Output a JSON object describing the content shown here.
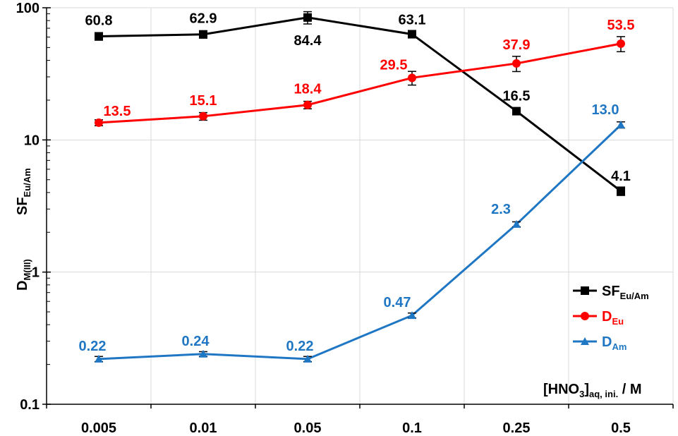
{
  "chart_data": {
    "type": "line",
    "y_scale": "log",
    "ylim": [
      0.1,
      100
    ],
    "grid": true,
    "legend_position": "right",
    "categories": [
      "0.005",
      "0.01",
      "0.05",
      "0.1",
      "0.25",
      "0.5"
    ],
    "y_tick_labels": [
      "100",
      "10",
      "1",
      "0.1"
    ],
    "y_ticks": [
      100,
      10,
      1,
      0.1
    ],
    "xlabel": {
      "main": "[HNO",
      "sub1": "3",
      "mid": "]",
      "sub2": "aq, ini.",
      "tail": " / M"
    },
    "ylabel_top": {
      "main": "SF",
      "sub": "Eu/Am"
    },
    "ylabel_bottom": {
      "main": "D",
      "sub": "M(III)"
    },
    "series": [
      {
        "key": "sf",
        "legend_main": "SF",
        "legend_sub": "Eu/Am",
        "color": "#000000",
        "marker": "square",
        "values": [
          60.8,
          62.9,
          84.4,
          63.1,
          16.5,
          4.1
        ],
        "errors": [
          4,
          4,
          9,
          4,
          1,
          0.3
        ],
        "labels": [
          "60.8",
          "62.9",
          "84.4",
          "63.1",
          "16.5",
          "4.1"
        ]
      },
      {
        "key": "deu",
        "legend_main": "D",
        "legend_sub": "Eu",
        "color": "#ff0000",
        "marker": "circle",
        "values": [
          13.5,
          15.1,
          18.4,
          29.5,
          37.9,
          53.5
        ],
        "errors": [
          0.7,
          1.0,
          1.2,
          3.5,
          5,
          7
        ],
        "labels": [
          "13.5",
          "15.1",
          "18.4",
          "29.5",
          "37.9",
          "53.5"
        ]
      },
      {
        "key": "dam",
        "legend_main": "D",
        "legend_sub": "Am",
        "color": "#1f77c4",
        "marker": "triangle",
        "values": [
          0.22,
          0.24,
          0.22,
          0.47,
          2.3,
          13.0
        ],
        "errors": [
          0.01,
          0.01,
          0.01,
          0.02,
          0.1,
          0.7
        ],
        "labels": [
          "0.22",
          "0.24",
          "0.22",
          "0.47",
          "2.3",
          "13.0"
        ]
      }
    ]
  }
}
